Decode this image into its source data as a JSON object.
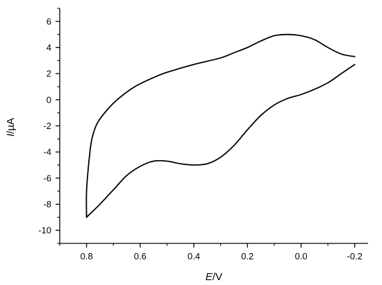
{
  "chart_data": {
    "type": "line",
    "title": "",
    "xlabel_italic": "E",
    "xlabel_unit": "/V",
    "ylabel_italic": "I",
    "ylabel_unit": "/µA",
    "xlim": [
      0.9,
      -0.25
    ],
    "ylim": [
      -11,
      7
    ],
    "x_axis_reversed": true,
    "grid": false,
    "legend": "none",
    "x_ticks": [
      0.8,
      0.6,
      0.4,
      0.2,
      0.0,
      -0.2
    ],
    "x_tick_labels": [
      "0.8",
      "0.6",
      "0.4",
      "0.2",
      "0.0",
      "-0.2"
    ],
    "y_ticks": [
      6,
      4,
      2,
      0,
      -2,
      -4,
      -6,
      -8,
      -10
    ],
    "y_tick_labels": [
      "6",
      "4",
      "2",
      "0",
      "-2",
      "-4",
      "-6",
      "-8",
      "-10"
    ],
    "line_color": "#000000",
    "series": [
      {
        "segments": [
          {
            "part": "cathodic",
            "x": [
              -0.2,
              -0.15,
              -0.1,
              -0.05,
              0.0,
              0.05,
              0.1,
              0.15,
              0.2,
              0.25,
              0.3,
              0.35,
              0.4,
              0.45,
              0.5,
              0.55,
              0.6,
              0.65,
              0.7,
              0.75,
              0.78,
              0.8
            ],
            "y": [
              2.7,
              2.0,
              1.3,
              0.8,
              0.4,
              0.1,
              -0.4,
              -1.2,
              -2.3,
              -3.5,
              -4.4,
              -4.9,
              -5.0,
              -4.9,
              -4.7,
              -4.7,
              -5.1,
              -5.8,
              -6.9,
              -8.0,
              -8.6,
              -9.0
            ]
          },
          {
            "part": "anodic",
            "x": [
              0.8,
              0.8,
              0.79,
              0.78,
              0.76,
              0.72,
              0.68,
              0.62,
              0.55,
              0.5,
              0.4,
              0.3,
              0.25,
              0.2,
              0.15,
              0.1,
              0.05,
              0.0,
              -0.05,
              -0.1,
              -0.15,
              -0.2
            ],
            "y": [
              -9.0,
              -7.0,
              -4.5,
              -3.0,
              -1.8,
              -0.7,
              0.1,
              1.0,
              1.7,
              2.1,
              2.7,
              3.2,
              3.6,
              4.0,
              4.5,
              4.9,
              5.0,
              4.9,
              4.6,
              4.0,
              3.5,
              3.3
            ]
          }
        ]
      }
    ]
  }
}
